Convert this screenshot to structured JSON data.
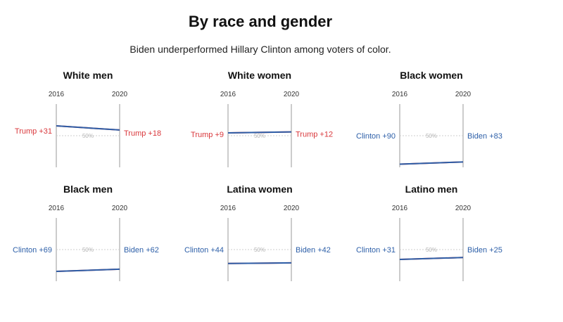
{
  "title": "By race and gender",
  "subtitle": "Biden underperformed Hillary Clinton among voters of color.",
  "colors": {
    "republican": "#d9373b",
    "democrat": "#2d5fa8",
    "axis": "#9a9a9a",
    "mid": "#cccccc",
    "midtext": "#b5b5b5"
  },
  "midline_label": "50%",
  "chart_data": [
    {
      "type": "slope",
      "title": "White men",
      "x": [
        "2016",
        "2020"
      ],
      "ylim": [
        0,
        100
      ],
      "winner_2016": "Trump",
      "winner_2020": "Trump",
      "margin_2016": 31,
      "margin_2020": 18,
      "label_2016": "Trump +31",
      "label_2020": "Trump +18"
    },
    {
      "type": "slope",
      "title": "White women",
      "x": [
        "2016",
        "2020"
      ],
      "ylim": [
        0,
        100
      ],
      "winner_2016": "Trump",
      "winner_2020": "Trump",
      "margin_2016": 9,
      "margin_2020": 12,
      "label_2016": "Trump +9",
      "label_2020": "Trump +12"
    },
    {
      "type": "slope",
      "title": "Black women",
      "x": [
        "2016",
        "2020"
      ],
      "ylim": [
        0,
        100
      ],
      "winner_2016": "Clinton",
      "winner_2020": "Biden",
      "margin_2016": 90,
      "margin_2020": 83,
      "label_2016": "Clinton +90",
      "label_2020": "Biden +83"
    },
    {
      "type": "slope",
      "title": "Black men",
      "x": [
        "2016",
        "2020"
      ],
      "ylim": [
        0,
        100
      ],
      "winner_2016": "Clinton",
      "winner_2020": "Biden",
      "margin_2016": 69,
      "margin_2020": 62,
      "label_2016": "Clinton +69",
      "label_2020": "Biden +62"
    },
    {
      "type": "slope",
      "title": "Latina women",
      "x": [
        "2016",
        "2020"
      ],
      "ylim": [
        0,
        100
      ],
      "winner_2016": "Clinton",
      "winner_2020": "Biden",
      "margin_2016": 44,
      "margin_2020": 42,
      "label_2016": "Clinton +44",
      "label_2020": "Biden +42"
    },
    {
      "type": "slope",
      "title": "Latino men",
      "x": [
        "2016",
        "2020"
      ],
      "ylim": [
        0,
        100
      ],
      "winner_2016": "Clinton",
      "winner_2020": "Biden",
      "margin_2016": 31,
      "margin_2020": 25,
      "label_2016": "Clinton +31",
      "label_2020": "Biden +25"
    }
  ]
}
